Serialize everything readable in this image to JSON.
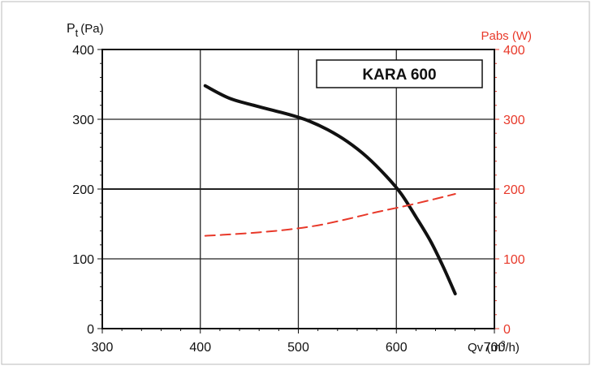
{
  "chart_data": {
    "type": "line",
    "title": "KARA 600",
    "xlabel_prefix": "Qv (m",
    "xlabel_sup": "3",
    "xlabel_suffix": "/h)",
    "ylabel_left_main": "P",
    "ylabel_left_sub": "t",
    "ylabel_left_unit": "(Pa)",
    "ylabel_right": "Pabs (W)",
    "xlim": [
      300,
      700
    ],
    "ylim_left": [
      0,
      400
    ],
    "ylim_right": [
      0,
      400
    ],
    "x_ticks": [
      "300",
      "400",
      "500",
      "600",
      "700"
    ],
    "x_tick_values": [
      300,
      400,
      500,
      600,
      700
    ],
    "y_ticks_left": [
      "0",
      "100",
      "200",
      "300",
      "400"
    ],
    "y_ticks_right": [
      "0",
      "100",
      "200",
      "300",
      "400"
    ],
    "y_tick_values": [
      0,
      100,
      200,
      300,
      400
    ],
    "grid": true,
    "series": [
      {
        "name": "Pt (Pa)",
        "axis": "left",
        "color": "#111111",
        "style": "solid",
        "x": [
          405,
          430,
          460,
          490,
          510,
          530,
          550,
          570,
          590,
          605,
          620,
          635,
          648,
          660
        ],
        "y": [
          348,
          330,
          318,
          307,
          298,
          285,
          268,
          246,
          218,
          193,
          160,
          125,
          88,
          50
        ]
      },
      {
        "name": "Pabs (W)",
        "axis": "right",
        "color": "#e8392a",
        "style": "dashed",
        "x": [
          405,
          430,
          460,
          490,
          520,
          550,
          580,
          610,
          640,
          660
        ],
        "y": [
          133,
          135,
          138,
          142,
          148,
          157,
          167,
          176,
          186,
          193
        ]
      }
    ],
    "colors": {
      "axis": "#111111",
      "right_axis": "#e8392a",
      "grid": "#222222"
    }
  }
}
